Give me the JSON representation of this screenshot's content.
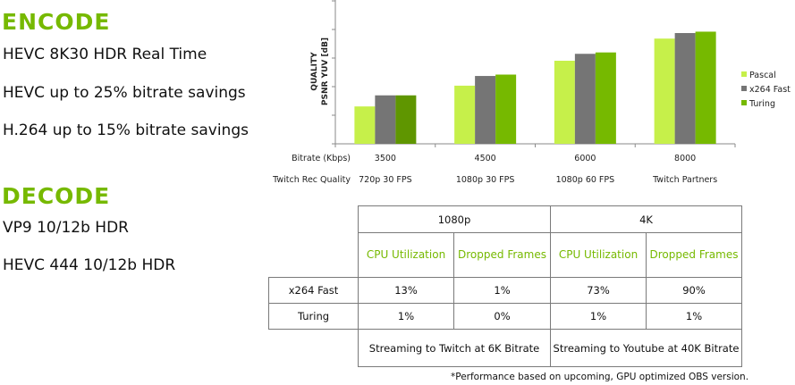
{
  "encode": {
    "heading": "ENCODE",
    "features": [
      "HEVC 8K30 HDR Real Time",
      "HEVC up to 25% bitrate savings",
      "H.264 up to 15% bitrate savings"
    ]
  },
  "decode": {
    "heading": "DECODE",
    "features": [
      "VP9 10/12b HDR",
      "HEVC 444 10/12b HDR"
    ]
  },
  "chart_data": {
    "type": "bar",
    "ylabel_line1": "QUALITY",
    "ylabel_line2": "PSNR YUV [dB]",
    "ylim": [
      0,
      5
    ],
    "grid": false,
    "legend_position": "right",
    "row_labels": [
      "Bitrate (Kbps)",
      "Twitch Rec Quality"
    ],
    "categories": [
      "3500",
      "4500",
      "6000",
      "8000"
    ],
    "secondary_categories": [
      "720p 30 FPS",
      "1080p 30 FPS",
      "1080p 60 FPS",
      "Twitch Partners"
    ],
    "series": [
      {
        "name": "Pascal",
        "color": "#c6f04a",
        "values": [
          1.35,
          2.1,
          3.0,
          3.8
        ]
      },
      {
        "name": "x264 Fast",
        "color": "#757575",
        "values": [
          1.75,
          2.45,
          3.25,
          4.0
        ]
      },
      {
        "name": "Turing",
        "color": "#76b900",
        "values": [
          1.75,
          2.5,
          3.3,
          4.05
        ]
      }
    ]
  },
  "perf_table": {
    "groups": [
      "1080p",
      "4K"
    ],
    "subheaders": [
      "CPU Utilization",
      "Dropped Frames",
      "CPU Utilization",
      "Dropped Frames"
    ],
    "rows": [
      {
        "label": "x264 Fast",
        "values": [
          "13%",
          "1%",
          "73%",
          "90%"
        ]
      },
      {
        "label": "Turing",
        "values": [
          "1%",
          "0%",
          "1%",
          "1%"
        ]
      }
    ],
    "notes": [
      "Streaming to Twitch at 6K Bitrate",
      "Streaming to Youtube at 40K Bitrate"
    ]
  },
  "footnote": "*Performance based on upcoming, GPU optimized OBS version."
}
